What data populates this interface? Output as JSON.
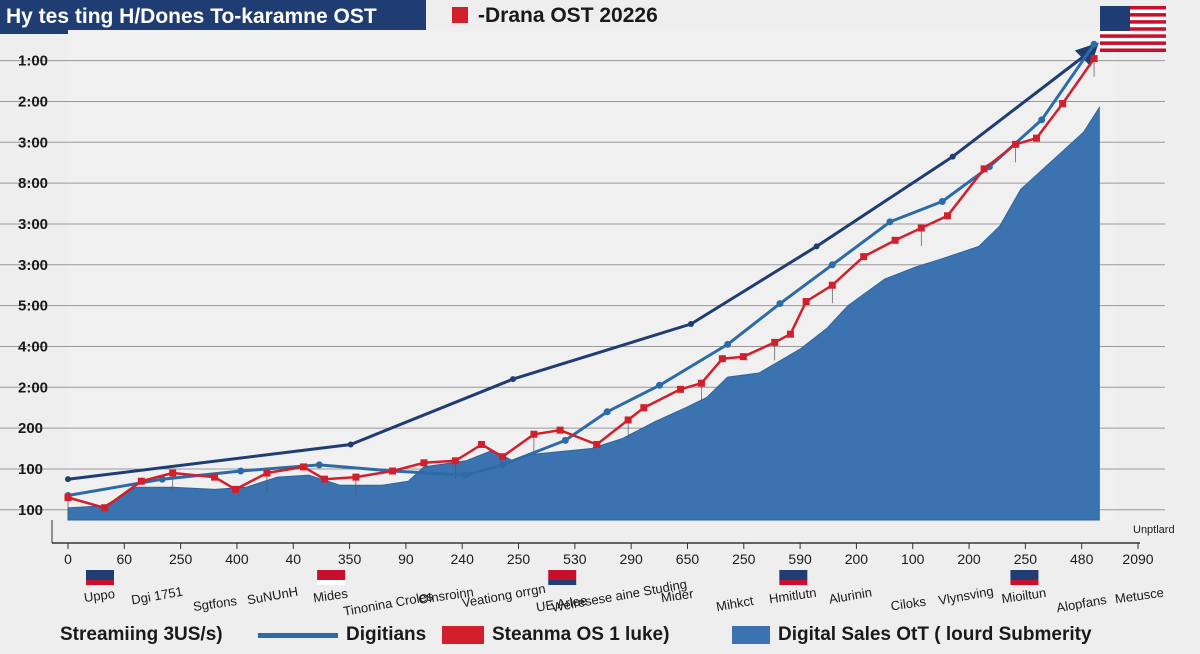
{
  "chart_data": {
    "type": "area",
    "title": "Hy tes ting H/Dones To-karamne OST",
    "subtitle": "-Drana OST 202​26",
    "y_tick_labels": [
      "1:00",
      "2:00",
      "3:00",
      "8:00",
      "3:00",
      "3:00",
      "5:00",
      "4:00",
      "2:00",
      "200",
      "100",
      "100"
    ],
    "x_tick_labels": [
      "0",
      "60",
      "250",
      "400",
      "40",
      "350",
      "90",
      "240",
      "250",
      "530",
      "290",
      "650",
      "250",
      "590",
      "200",
      "100",
      "200",
      "250",
      "480",
      "2090"
    ],
    "x_category_labels": [
      "Uppo",
      "Dgi 1751",
      "Sgtfons",
      "SuNUnH",
      "Mides",
      "Tinonina Croles",
      "Olnsroinn",
      "Veationg orrgn",
      "UE Arlee",
      "Welresese aine Studing",
      "Mider",
      "Mihkct",
      "Hmitlutn",
      "Alurinin",
      "Ciloks",
      "Vlynsving",
      "Mioiltun",
      "Alopfans",
      "Metusce"
    ],
    "x_axis_note": "Unptlard",
    "legend": {
      "prefix": "Streamiing 3US/s)",
      "items": [
        "Digitians",
        "Steanma OS 1 luke)",
        "Digital Sales OtT ( lourd Submerity"
      ]
    },
    "colors": {
      "navy": "#1f3d73",
      "steel": "#2d6ba8",
      "red": "#d21f2b",
      "area": "#3b73b0"
    },
    "y_range": [
      0,
      12
    ],
    "x_range": [
      0,
      20
    ],
    "series": [
      {
        "name": "Digitians",
        "style": "line",
        "values": [
          [
            0.0,
            1.0
          ],
          [
            5.4,
            1.85
          ],
          [
            8.5,
            3.45
          ],
          [
            11.9,
            4.8
          ],
          [
            14.3,
            6.7
          ],
          [
            16.9,
            8.9
          ],
          [
            19.5,
            11.45
          ]
        ]
      },
      {
        "name": "Digitians",
        "style": "line-marked",
        "values": [
          [
            0.0,
            0.6
          ],
          [
            1.8,
            1.0
          ],
          [
            3.3,
            1.2
          ],
          [
            4.8,
            1.35
          ],
          [
            6.2,
            1.2
          ],
          [
            7.6,
            1.1
          ],
          [
            8.3,
            1.35
          ],
          [
            9.5,
            1.95
          ],
          [
            10.3,
            2.65
          ],
          [
            11.3,
            3.3
          ],
          [
            12.6,
            4.3
          ],
          [
            13.6,
            5.3
          ],
          [
            14.6,
            6.25
          ],
          [
            15.7,
            7.3
          ],
          [
            16.7,
            7.8
          ],
          [
            17.6,
            8.65
          ],
          [
            18.6,
            9.8
          ],
          [
            19.6,
            11.65
          ]
        ]
      },
      {
        "name": "Steanma OS 1 luke)",
        "style": "line-marked",
        "values": [
          [
            0.0,
            0.55
          ],
          [
            0.7,
            0.3
          ],
          [
            1.4,
            0.95
          ],
          [
            2.0,
            1.15
          ],
          [
            2.8,
            1.05
          ],
          [
            3.2,
            0.75
          ],
          [
            3.8,
            1.15
          ],
          [
            4.5,
            1.3
          ],
          [
            4.9,
            1.0
          ],
          [
            5.5,
            1.05
          ],
          [
            6.2,
            1.2
          ],
          [
            6.8,
            1.4
          ],
          [
            7.4,
            1.45
          ],
          [
            7.9,
            1.85
          ],
          [
            8.3,
            1.55
          ],
          [
            8.9,
            2.1
          ],
          [
            9.4,
            2.2
          ],
          [
            10.1,
            1.85
          ],
          [
            10.7,
            2.45
          ],
          [
            11.0,
            2.75
          ],
          [
            11.7,
            3.2
          ],
          [
            12.1,
            3.35
          ],
          [
            12.5,
            3.95
          ],
          [
            12.9,
            4.0
          ],
          [
            13.5,
            4.35
          ],
          [
            13.8,
            4.55
          ],
          [
            14.1,
            5.35
          ],
          [
            14.6,
            5.75
          ],
          [
            15.2,
            6.45
          ],
          [
            15.8,
            6.85
          ],
          [
            16.3,
            7.15
          ],
          [
            16.8,
            7.45
          ],
          [
            17.5,
            8.6
          ],
          [
            18.1,
            9.2
          ],
          [
            18.5,
            9.35
          ],
          [
            19.0,
            10.2
          ],
          [
            19.6,
            11.3
          ]
        ]
      },
      {
        "name": "Digital Sales OtT ( lourd Submerity",
        "style": "area",
        "values": [
          [
            0.0,
            0.3
          ],
          [
            0.7,
            0.35
          ],
          [
            1.3,
            0.8
          ],
          [
            2.0,
            0.8
          ],
          [
            2.8,
            0.75
          ],
          [
            3.4,
            0.8
          ],
          [
            4.0,
            1.05
          ],
          [
            4.6,
            1.1
          ],
          [
            5.2,
            0.85
          ],
          [
            6.0,
            0.85
          ],
          [
            6.5,
            0.95
          ],
          [
            6.8,
            1.3
          ],
          [
            7.6,
            1.45
          ],
          [
            8.1,
            1.7
          ],
          [
            8.5,
            1.45
          ],
          [
            8.8,
            1.6
          ],
          [
            9.2,
            1.65
          ],
          [
            10.0,
            1.75
          ],
          [
            10.6,
            2.0
          ],
          [
            11.2,
            2.4
          ],
          [
            11.8,
            2.75
          ],
          [
            12.2,
            3.0
          ],
          [
            12.6,
            3.5
          ],
          [
            13.2,
            3.6
          ],
          [
            13.6,
            3.9
          ],
          [
            14.0,
            4.2
          ],
          [
            14.5,
            4.7
          ],
          [
            14.9,
            5.25
          ],
          [
            15.6,
            5.9
          ],
          [
            16.2,
            6.2
          ],
          [
            16.7,
            6.4
          ],
          [
            17.4,
            6.7
          ],
          [
            17.8,
            7.2
          ],
          [
            18.2,
            8.1
          ],
          [
            18.8,
            8.8
          ],
          [
            19.4,
            9.5
          ],
          [
            19.7,
            10.1
          ]
        ]
      }
    ],
    "grid": true,
    "legend_position": "bottom"
  }
}
